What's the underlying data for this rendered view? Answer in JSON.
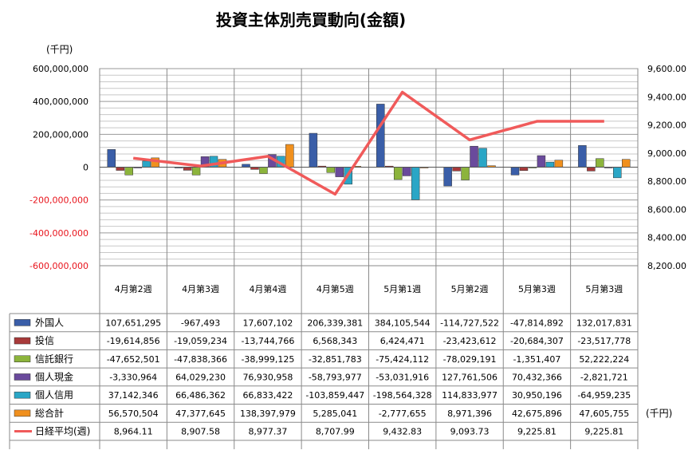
{
  "chart_data": {
    "type": "bar",
    "title": "投資主体別売買動向(金額)",
    "left_unit": "(千円)",
    "right_unit": "(千円)",
    "categories": [
      "4月第2週",
      "4月第3週",
      "4月第4週",
      "4月第5週",
      "5月第1週",
      "5月第2週",
      "5月第3週",
      "5月第3週"
    ],
    "ylim": [
      -600000000,
      600000000
    ],
    "ytick_labels": [
      "600,000,000",
      "400,000,000",
      "200,000,000",
      "0",
      "-200,000,000",
      "-400,000,000",
      "-600,000,000"
    ],
    "y2lim": [
      8200,
      9600
    ],
    "y2tick_labels": [
      "9,600.00",
      "9,400.00",
      "9,200.00",
      "9,000.00",
      "8,800.00",
      "8,600.00",
      "8,400.00",
      "8,200.00"
    ],
    "series": [
      {
        "name": "外国人",
        "type": "bar",
        "color": "#3a5ea8",
        "values": [
          107651295,
          -967493,
          17607102,
          206339381,
          384105544,
          -114727522,
          -47814892,
          132017831
        ],
        "labels": [
          "107,651,295",
          "-967,493",
          "17,607,102",
          "206,339,381",
          "384,105,544",
          "-114,727,522",
          "-47,814,892",
          "132,017,831"
        ]
      },
      {
        "name": "投信",
        "type": "bar",
        "color": "#a83a3a",
        "values": [
          -19614856,
          -19059234,
          -13744766,
          6568343,
          6424471,
          -23423612,
          -20684307,
          -23517778
        ],
        "labels": [
          "-19,614,856",
          "-19,059,234",
          "-13,744,766",
          "6,568,343",
          "6,424,471",
          "-23,423,612",
          "-20,684,307",
          "-23,517,778"
        ]
      },
      {
        "name": "信託銀行",
        "type": "bar",
        "color": "#8cb43c",
        "values": [
          -47652501,
          -47838366,
          -38999125,
          -32851783,
          -75424112,
          -78029191,
          -1351407,
          52222224
        ],
        "labels": [
          "-47,652,501",
          "-47,838,366",
          "-38,999,125",
          "-32,851,783",
          "-75,424,112",
          "-78,029,191",
          "-1,351,407",
          "52,222,224"
        ]
      },
      {
        "name": "個人現金",
        "type": "bar",
        "color": "#6a4a9c",
        "values": [
          -3330964,
          64029230,
          76930958,
          -58793977,
          -53031916,
          127761506,
          70432366,
          -2821721
        ],
        "labels": [
          "-3,330,964",
          "64,029,230",
          "76,930,958",
          "-58,793,977",
          "-53,031,916",
          "127,761,506",
          "70,432,366",
          "-2,821,721"
        ]
      },
      {
        "name": "個人信用",
        "type": "bar",
        "color": "#2aa6c6",
        "values": [
          37142346,
          66486362,
          66833422,
          -103859447,
          -198564328,
          114833977,
          30950196,
          -64959235
        ],
        "labels": [
          "37,142,346",
          "66,486,362",
          "66,833,422",
          "-103,859,447",
          "-198,564,328",
          "114,833,977",
          "30,950,196",
          "-64,959,235"
        ]
      },
      {
        "name": "総合計",
        "type": "bar",
        "color": "#f0901e",
        "values": [
          56570504,
          47377645,
          138397979,
          5285041,
          -2777655,
          8971396,
          42675896,
          47605755
        ],
        "labels": [
          "56,570,504",
          "47,377,645",
          "138,397,979",
          "5,285,041",
          "-2,777,655",
          "8,971,396",
          "42,675,896",
          "47,605,755"
        ]
      },
      {
        "name": "日経平均(週)",
        "type": "line",
        "axis": "right",
        "color": "#f05a5a",
        "values": [
          8964.11,
          8907.58,
          8977.37,
          8707.99,
          9432.83,
          9093.73,
          9225.81,
          9225.81
        ],
        "labels": [
          "8,964.11",
          "8,907.58",
          "8,977.37",
          "8,707.99",
          "9,432.83",
          "9,093.73",
          "9,225.81",
          "9,225.81"
        ]
      }
    ],
    "grid": true,
    "legend": "data-table"
  }
}
